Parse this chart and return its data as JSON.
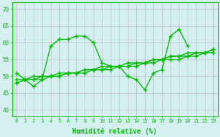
{
  "x": [
    0,
    1,
    2,
    3,
    4,
    5,
    6,
    7,
    8,
    9,
    10,
    11,
    12,
    13,
    14,
    15,
    16,
    17,
    18,
    19,
    20,
    21,
    22,
    23
  ],
  "line_spiky": [
    51,
    49,
    47,
    49,
    59,
    61,
    61,
    62,
    62,
    60,
    54,
    53,
    53,
    50,
    49,
    46,
    51,
    52,
    62,
    64,
    59,
    null,
    null,
    null
  ],
  "line_reg1": [
    48,
    49,
    49,
    49,
    50,
    50,
    51,
    51,
    51,
    52,
    52,
    52,
    53,
    53,
    53,
    54,
    54,
    55,
    55,
    55,
    56,
    56,
    57,
    57
  ],
  "line_reg2": [
    48,
    49,
    49,
    50,
    50,
    50,
    51,
    51,
    52,
    52,
    52,
    53,
    53,
    53,
    54,
    54,
    55,
    55,
    56,
    56,
    56,
    57,
    57,
    58
  ],
  "line_reg3": [
    49,
    49,
    50,
    50,
    50,
    51,
    51,
    51,
    52,
    52,
    53,
    53,
    53,
    54,
    54,
    54,
    55,
    55,
    56,
    56,
    57,
    57,
    57,
    58
  ],
  "color": "#00bb00",
  "bg_color": "#d4f0f0",
  "grid_color": "#bbbbbb",
  "xlabel": "Humidité relative (%)",
  "ylabel_ticks": [
    40,
    45,
    50,
    55,
    60,
    65,
    70
  ],
  "ylim": [
    38,
    72
  ],
  "xlim": [
    -0.5,
    23.5
  ],
  "marker": "+",
  "linewidth": 1.0,
  "markersize": 4,
  "markeredgewidth": 1.0
}
